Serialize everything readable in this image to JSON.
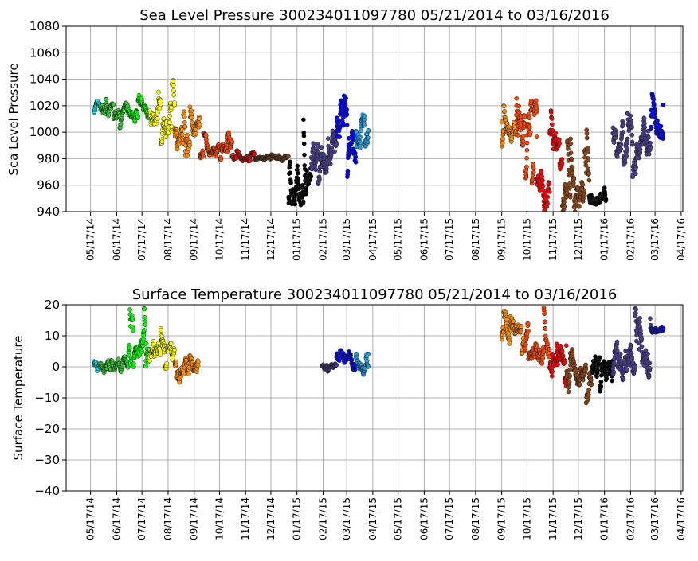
{
  "chart_data": [
    {
      "type": "scatter",
      "title": "Sea Level Pressure 300234011097780  05/21/2014 to 03/16/2016",
      "ylabel": "Sea Level Pressure",
      "xlabel": "",
      "ylim": [
        940,
        1080
      ],
      "yticks": [
        940,
        960,
        980,
        1000,
        1020,
        1040,
        1060,
        1080
      ],
      "grid": true,
      "x_units": "days since 05/17/14",
      "xlim": [
        -29,
        703
      ],
      "xticks": [
        "05/17/14",
        "06/17/14",
        "07/17/14",
        "08/17/14",
        "09/17/14",
        "10/17/14",
        "11/17/14",
        "12/17/14",
        "01/17/15",
        "02/17/15",
        "03/17/15",
        "04/17/15",
        "05/17/15",
        "06/17/15",
        "07/17/15",
        "08/17/15",
        "09/17/15",
        "10/17/15",
        "11/17/15",
        "12/17/15",
        "01/17/16",
        "02/17/16",
        "03/17/16",
        "04/17/16"
      ],
      "segments": [
        {
          "color": "#00ffff",
          "start": 4,
          "end": 12,
          "mean": 1018,
          "min": 1008,
          "max": 1033
        },
        {
          "color": "#32cd32",
          "start": 12,
          "end": 45,
          "mean": 1015,
          "min": 1003,
          "max": 1027
        },
        {
          "color": "#00ff00",
          "start": 45,
          "end": 70,
          "mean": 1015,
          "min": 1002,
          "max": 1028
        },
        {
          "color": "#ffff00",
          "start": 70,
          "end": 100,
          "mean": 1010,
          "min": 985,
          "max": 1039
        },
        {
          "color": "#ff8c00",
          "start": 100,
          "end": 130,
          "mean": 1002,
          "min": 981,
          "max": 1023
        },
        {
          "color": "#ff4500",
          "start": 130,
          "end": 170,
          "mean": 985,
          "min": 977,
          "max": 1000
        },
        {
          "color": "#ff0000",
          "start": 170,
          "end": 195,
          "mean": 980,
          "min": 975,
          "max": 986
        },
        {
          "color": "#8b4513",
          "start": 195,
          "end": 235,
          "mean": 980,
          "min": 976,
          "max": 984
        },
        {
          "color": "#000000",
          "start": 235,
          "end": 262,
          "mean": 955,
          "min": 940,
          "max": 1016
        },
        {
          "color": "#483d8b",
          "start": 262,
          "end": 292,
          "mean": 985,
          "min": 942,
          "max": 1010
        },
        {
          "color": "#0000ff",
          "start": 292,
          "end": 315,
          "mean": 1000,
          "min": 940,
          "max": 1031
        },
        {
          "color": "#1e9fe6",
          "start": 315,
          "end": 330,
          "mean": 1005,
          "min": 972,
          "max": 1024
        },
        {
          "color": "#ff8c00",
          "start": 488,
          "end": 505,
          "mean": 1005,
          "min": 988,
          "max": 1024
        },
        {
          "color": "#ff4500",
          "start": 505,
          "end": 530,
          "mean": 1002,
          "min": 955,
          "max": 1027
        },
        {
          "color": "#ff0000",
          "start": 530,
          "end": 545,
          "mean": 962,
          "min": 941,
          "max": 990
        },
        {
          "color": "#ff0000",
          "start": 545,
          "end": 560,
          "mean": 998,
          "min": 970,
          "max": 1020
        },
        {
          "color": "#8b4513",
          "start": 560,
          "end": 592,
          "mean": 950,
          "min": 940,
          "max": 1005
        },
        {
          "color": "#000000",
          "start": 592,
          "end": 612,
          "mean": 950,
          "min": 940,
          "max": 965
        },
        {
          "color": "#483d8b",
          "start": 620,
          "end": 665,
          "mean": 995,
          "min": 965,
          "max": 1024
        },
        {
          "color": "#0000ff",
          "start": 665,
          "end": 680,
          "mean": 1005,
          "min": 985,
          "max": 1029
        }
      ]
    },
    {
      "type": "scatter",
      "title": "Surface Temperature 300234011097780  05/21/2014 to 03/16/2016",
      "ylabel": "Surface Temperature",
      "xlabel": "",
      "ylim": [
        -40,
        20
      ],
      "yticks": [
        -40,
        -30,
        -20,
        -10,
        0,
        10,
        20
      ],
      "grid": true,
      "x_units": "days since 05/17/14",
      "xlim": [
        -29,
        703
      ],
      "xticks": [
        "05/17/14",
        "06/17/14",
        "07/17/14",
        "08/17/14",
        "09/17/14",
        "10/17/14",
        "11/17/14",
        "12/17/14",
        "01/17/15",
        "02/17/15",
        "03/17/15",
        "04/17/15",
        "05/17/15",
        "06/17/15",
        "07/17/15",
        "08/17/15",
        "09/17/15",
        "10/17/15",
        "11/17/15",
        "12/17/15",
        "01/17/16",
        "02/17/16",
        "03/17/16",
        "04/17/16"
      ],
      "segments": [
        {
          "color": "#00ffff",
          "start": 4,
          "end": 12,
          "mean": -2,
          "min": -5,
          "max": 5
        },
        {
          "color": "#32cd32",
          "start": 12,
          "end": 45,
          "mean": 0,
          "min": -3,
          "max": 6
        },
        {
          "color": "#00ff00",
          "start": 45,
          "end": 70,
          "mean": 5,
          "min": 0,
          "max": 20
        },
        {
          "color": "#ffff00",
          "start": 70,
          "end": 100,
          "mean": 3,
          "min": -1,
          "max": 17
        },
        {
          "color": "#ff8c00",
          "start": 100,
          "end": 128,
          "mean": 0,
          "min": -5,
          "max": 12
        },
        {
          "color": "#483d8b",
          "start": 275,
          "end": 292,
          "mean": 0,
          "min": -2,
          "max": 2
        },
        {
          "color": "#0000ff",
          "start": 292,
          "end": 315,
          "mean": 2,
          "min": -1,
          "max": 13
        },
        {
          "color": "#1e9fe6",
          "start": 315,
          "end": 330,
          "mean": 2,
          "min": -3,
          "max": 9
        },
        {
          "color": "#ff8c00",
          "start": 488,
          "end": 515,
          "mean": 10,
          "min": 2,
          "max": 20
        },
        {
          "color": "#ff4500",
          "start": 515,
          "end": 545,
          "mean": 6,
          "min": -2,
          "max": 19
        },
        {
          "color": "#ff0000",
          "start": 545,
          "end": 565,
          "mean": 1,
          "min": -10,
          "max": 10
        },
        {
          "color": "#8b4513",
          "start": 565,
          "end": 595,
          "mean": -2,
          "min": -13,
          "max": 8
        },
        {
          "color": "#000000",
          "start": 595,
          "end": 620,
          "mean": 0,
          "min": -12,
          "max": 8
        },
        {
          "color": "#483d8b",
          "start": 620,
          "end": 665,
          "mean": 1,
          "min": -10,
          "max": 20
        },
        {
          "color": "#0000ff",
          "start": 665,
          "end": 680,
          "mean": 12,
          "min": 9,
          "max": 15
        }
      ]
    }
  ]
}
